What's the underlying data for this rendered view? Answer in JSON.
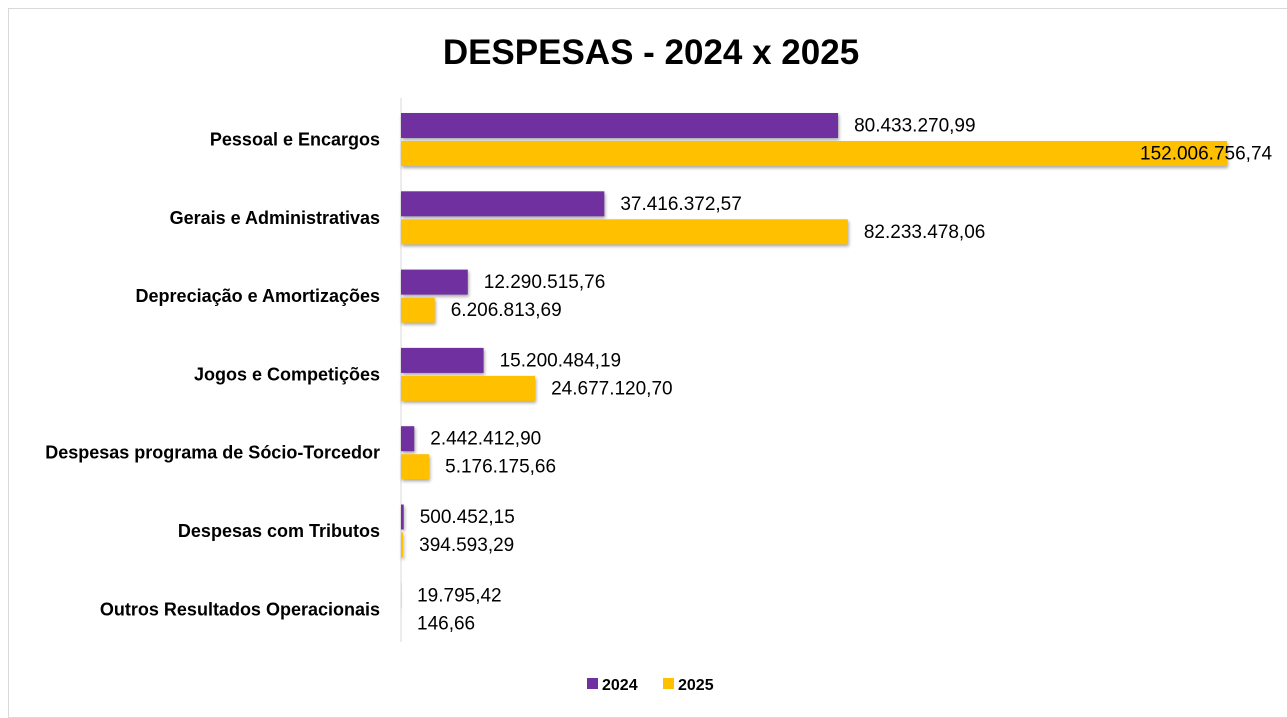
{
  "chart_data": {
    "type": "bar",
    "orientation": "horizontal",
    "title": "DESPESAS - 2024 x 2025",
    "categories": [
      "Pessoal e Encargos",
      "Gerais e Administrativas",
      "Depreciação e Amortizações",
      "Jogos e Competições",
      "Despesas programa de Sócio-Torcedor",
      "Despesas com Tributos",
      "Outros Resultados Operacionais"
    ],
    "series": [
      {
        "name": "2024",
        "color": "#7030a0",
        "values": [
          80433270.99,
          37416372.57,
          12290515.76,
          15200484.19,
          2442412.9,
          500452.15,
          19795.42
        ],
        "labels": [
          "80.433.270,99",
          "37.416.372,57",
          "12.290.515,76",
          "15.200.484,19",
          "2.442.412,90",
          "500.452,15",
          "19.795,42"
        ]
      },
      {
        "name": "2025",
        "color": "#ffc000",
        "values": [
          152006756.74,
          82233478.06,
          6206813.69,
          24677120.7,
          5176175.66,
          394593.29,
          146.66
        ],
        "labels": [
          "152.006.756,74",
          "82.233.478,06",
          "6.206.813,69",
          "24.677.120,70",
          "5.176.175,66",
          "394.593,29",
          "146,66"
        ]
      }
    ],
    "xlabel": "",
    "ylabel": "",
    "xlim": [
      0,
      152006756.74
    ],
    "grid": false,
    "legend_position": "bottom"
  }
}
